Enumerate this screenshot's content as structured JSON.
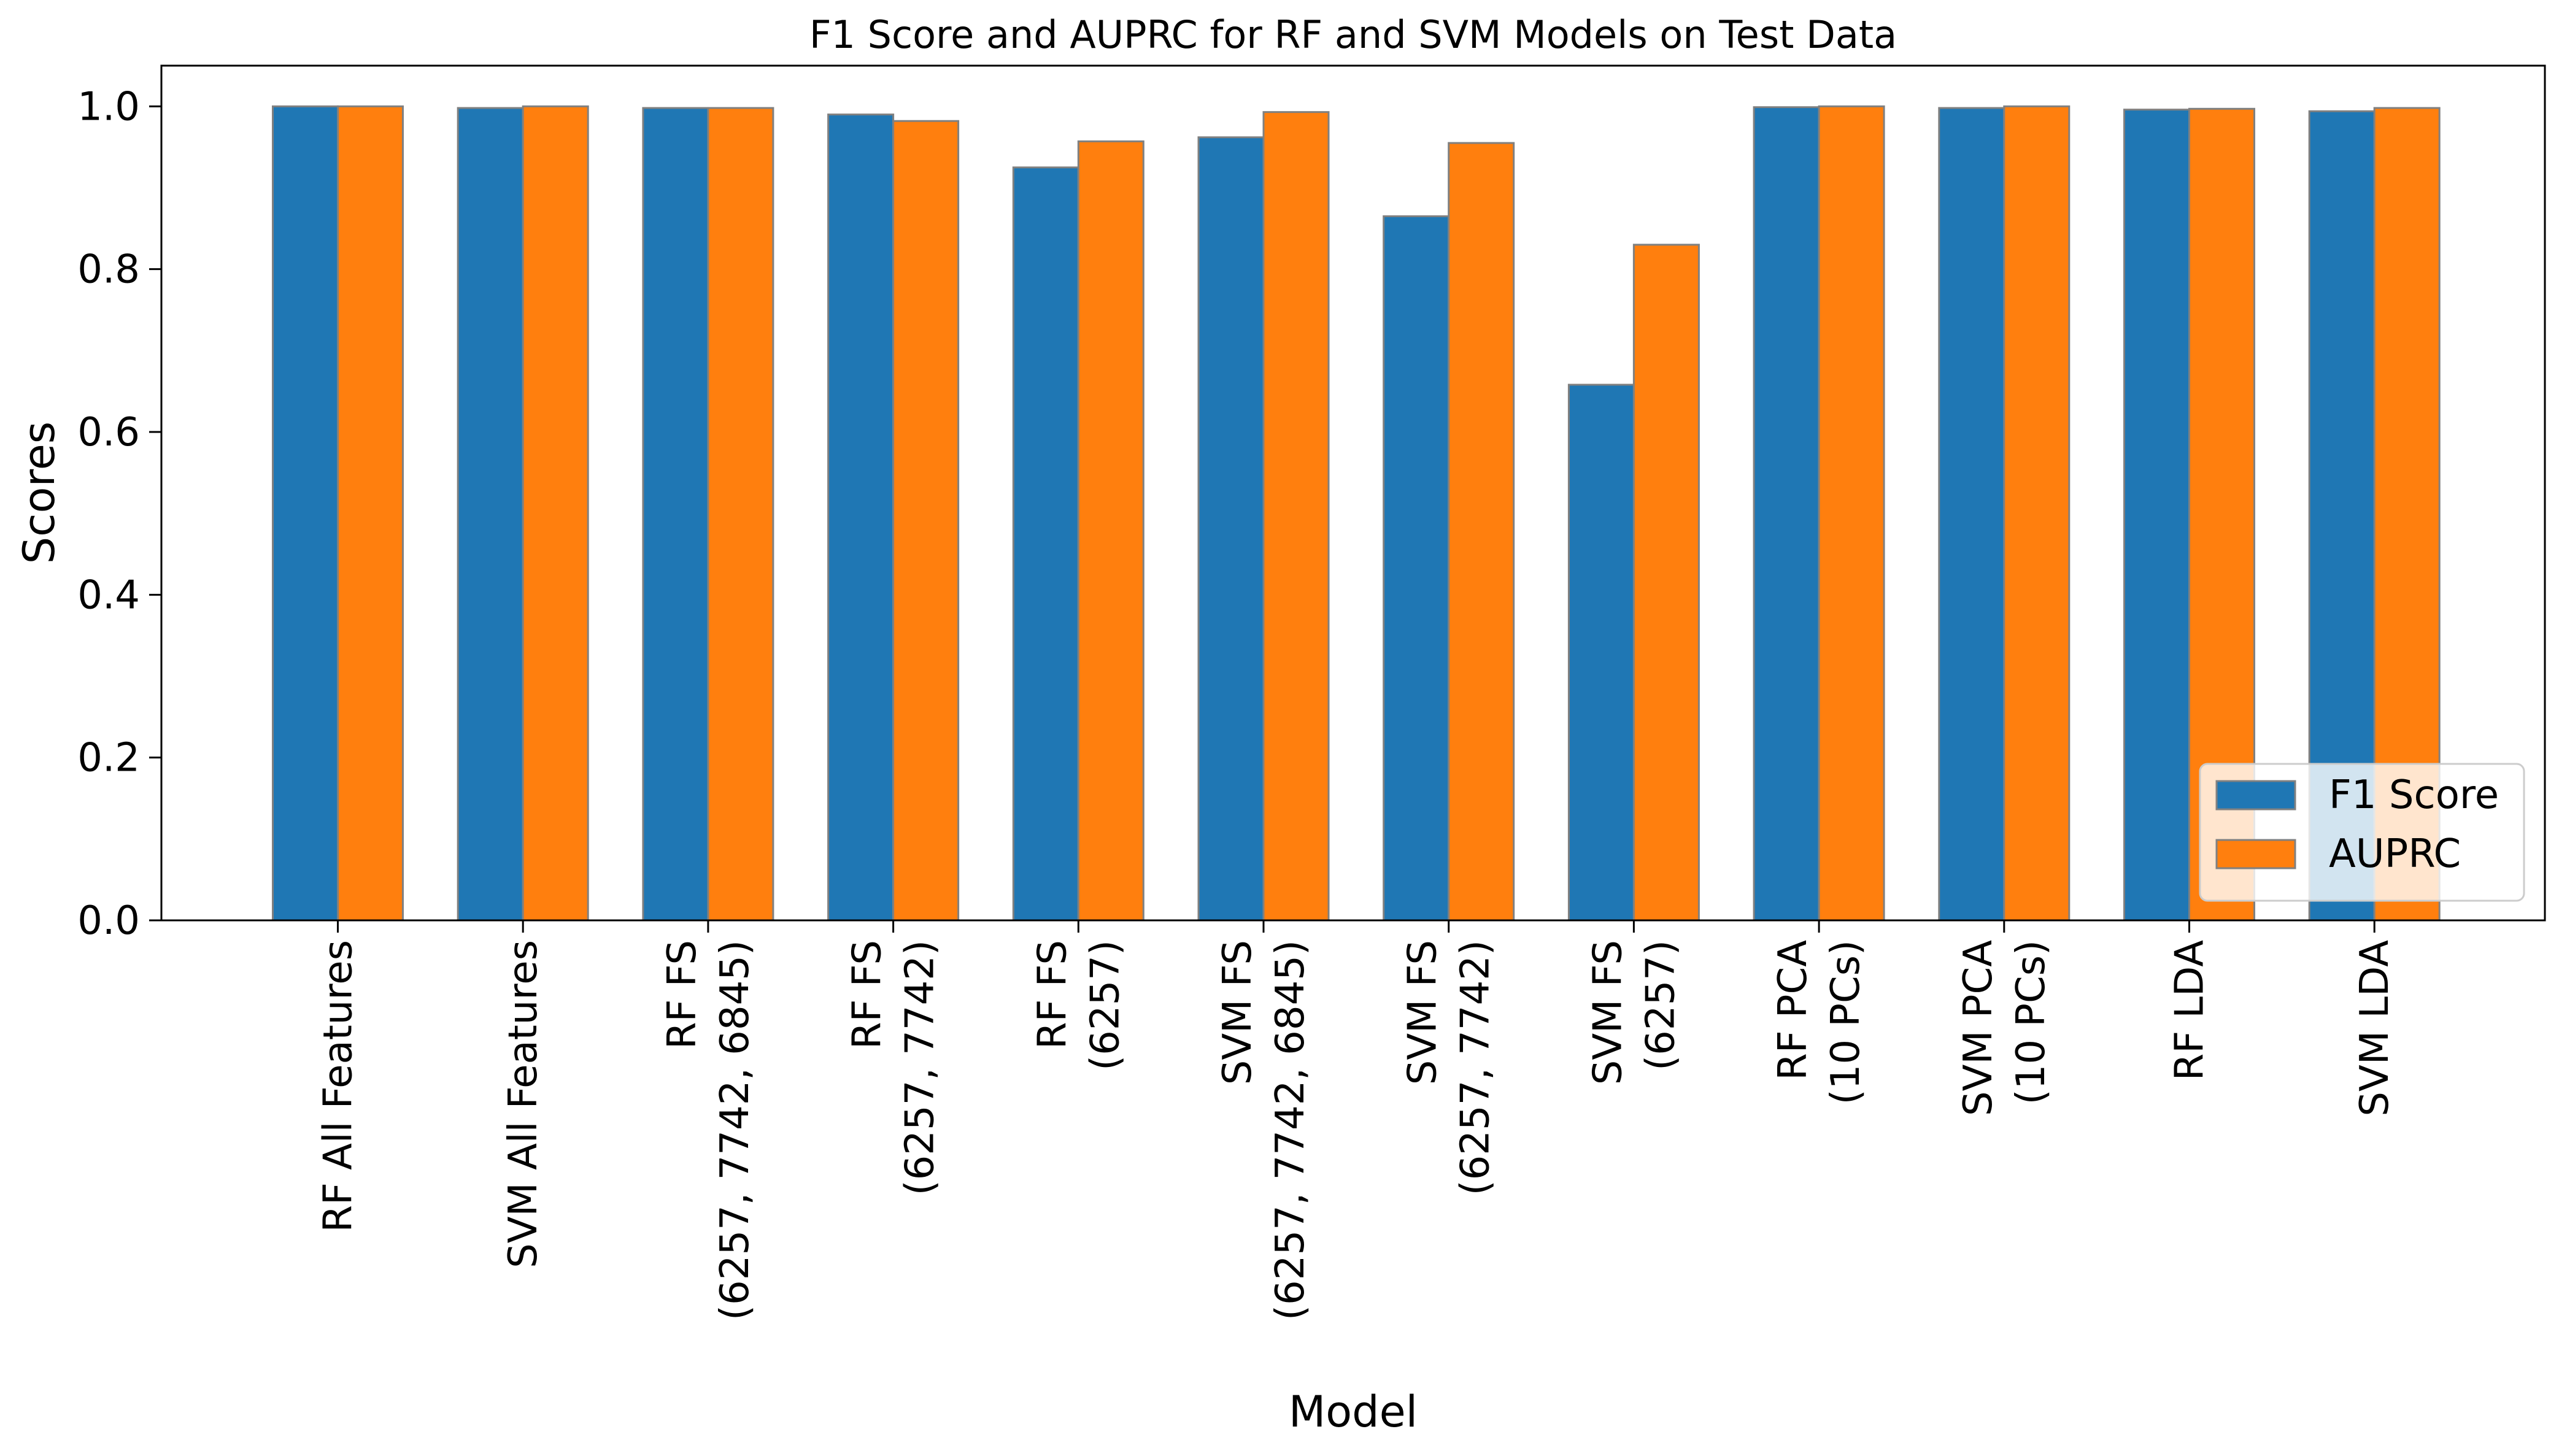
{
  "chart_data": {
    "type": "bar",
    "title": "F1 Score and AUPRC for RF and SVM Models on Test Data",
    "xlabel": "Model",
    "ylabel": "Scores",
    "ylim": [
      0,
      1.05
    ],
    "yticks": [
      "0.0",
      "0.2",
      "0.4",
      "0.6",
      "0.8",
      "1.0"
    ],
    "categories": [
      [
        "RF All Features"
      ],
      [
        "SVM All Features"
      ],
      [
        "RF FS",
        "(6257, 7742, 6845)"
      ],
      [
        "RF FS",
        "(6257, 7742)"
      ],
      [
        "RF FS",
        "(6257)"
      ],
      [
        "SVM FS",
        "(6257, 7742, 6845)"
      ],
      [
        "SVM FS",
        "(6257, 7742)"
      ],
      [
        "SVM FS",
        "(6257)"
      ],
      [
        "RF PCA",
        "(10 PCs)"
      ],
      [
        "SVM PCA",
        "(10 PCs)"
      ],
      [
        "RF LDA"
      ],
      [
        "SVM LDA"
      ]
    ],
    "series": [
      {
        "name": "F1 Score",
        "color": "#1f77b4",
        "values": [
          1.0,
          0.998,
          0.998,
          0.99,
          0.925,
          0.962,
          0.865,
          0.658,
          0.999,
          0.998,
          0.996,
          0.994
        ]
      },
      {
        "name": "AUPRC",
        "color": "#ff7f0e",
        "values": [
          1.0,
          1.0,
          0.998,
          0.982,
          0.957,
          0.993,
          0.955,
          0.83,
          1.0,
          1.0,
          0.997,
          0.998
        ]
      }
    ],
    "legend_position": "lower-right",
    "bar_edge_color": "#808080",
    "grid": false
  }
}
